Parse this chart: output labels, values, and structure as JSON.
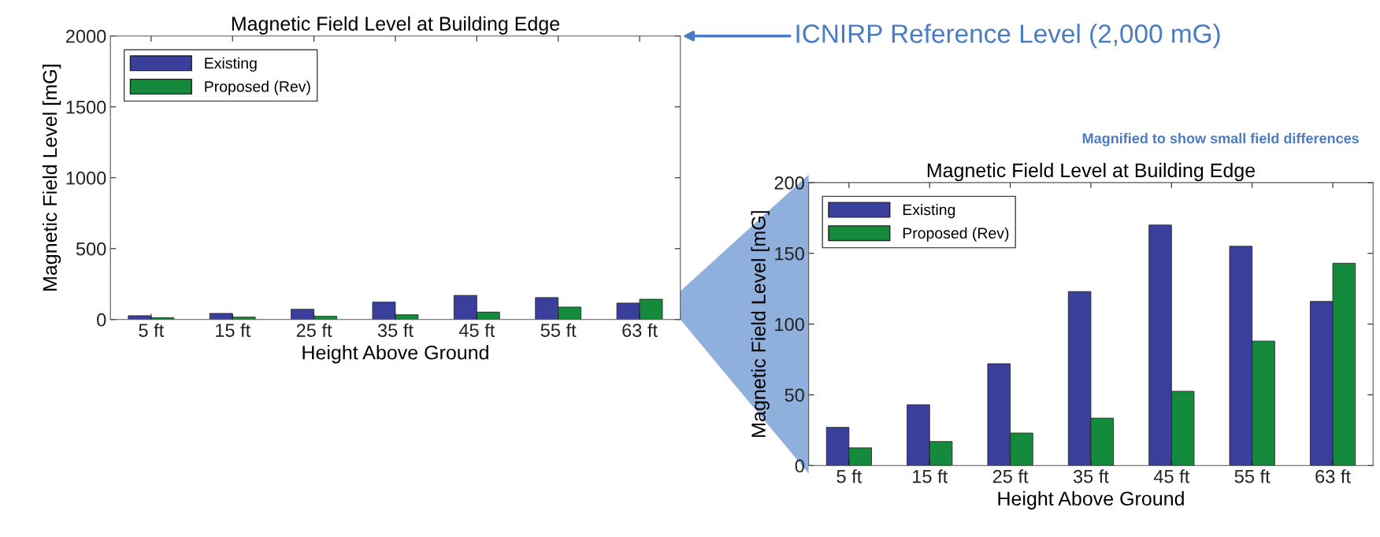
{
  "chart_data": [
    {
      "type": "bar",
      "title": "Magnetic Field Level at Building Edge",
      "xlabel": "Height Above Ground",
      "ylabel": "Magnetic Field Level [mG]",
      "categories": [
        "5 ft",
        "15 ft",
        "25 ft",
        "35 ft",
        "45 ft",
        "55 ft",
        "63 ft"
      ],
      "series": [
        {
          "name": "Existing",
          "color": "#3a3f9c",
          "values": [
            27,
            43,
            72,
            123,
            170,
            155,
            116
          ]
        },
        {
          "name": "Proposed (Rev)",
          "color": "#138a3c",
          "values": [
            12.5,
            17,
            23,
            33.5,
            52.5,
            88,
            143
          ]
        }
      ],
      "ylim": [
        0,
        2000
      ],
      "yticks": [
        0,
        500,
        1000,
        1500,
        2000
      ],
      "legend": "top left",
      "grid": false,
      "annotations": [
        "ICNIRP Reference Level (2,000 mG)"
      ]
    },
    {
      "type": "bar",
      "title": "Magnetic Field Level at Building Edge",
      "xlabel": "Height Above Ground",
      "ylabel": "Magnetic Field Level [mG]",
      "categories": [
        "5 ft",
        "15 ft",
        "25 ft",
        "35 ft",
        "45 ft",
        "55 ft",
        "63 ft"
      ],
      "series": [
        {
          "name": "Existing",
          "color": "#3a3f9c",
          "values": [
            27,
            43,
            72,
            123,
            170,
            155,
            116
          ]
        },
        {
          "name": "Proposed (Rev)",
          "color": "#138a3c",
          "values": [
            12.5,
            17,
            23,
            33.5,
            52.5,
            88,
            143
          ]
        }
      ],
      "ylim": [
        0,
        200
      ],
      "yticks": [
        0,
        50,
        100,
        150,
        200
      ],
      "legend": "top left",
      "grid": false,
      "annotations": [
        "Magnified to show small field differences"
      ]
    }
  ]
}
